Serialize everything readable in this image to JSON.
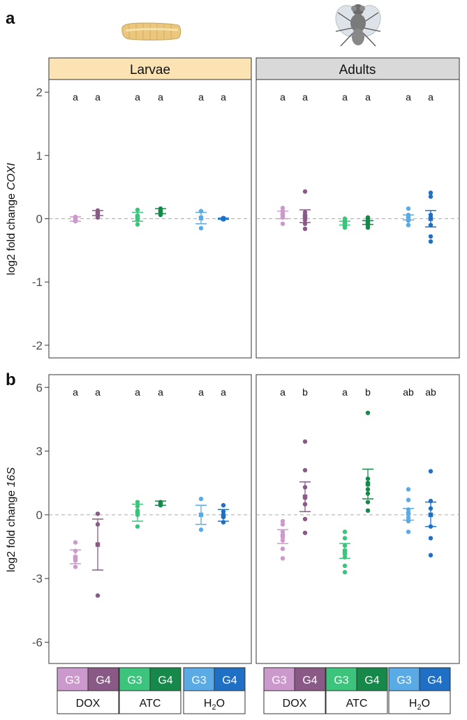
{
  "panel_labels": {
    "a": "a",
    "b": "b"
  },
  "strips": {
    "larvae": "Larvae",
    "adults": "Adults"
  },
  "treatments": [
    "DOX",
    "ATC",
    "H2O"
  ],
  "treatment_labels": {
    "DOX": "DOX",
    "ATC": "ATC",
    "H2O_main": "H",
    "H2O_sub": "2",
    "H2O_tail": "O"
  },
  "generation_labels": [
    "G3",
    "G4"
  ],
  "colors": {
    "DOX_G3": "#cc99cc",
    "DOX_G4": "#8a5a86",
    "ATC_G3": "#3cc47c",
    "ATC_G4": "#16894a",
    "H2O_G3": "#5aaae6",
    "H2O_G4": "#1f6fc4",
    "strip_larvae": "#fbe3b4",
    "strip_adults": "#d9d9d9"
  },
  "icons": {
    "larva": "larva-illustration",
    "fly": "fly-illustration"
  },
  "chart_data": [
    {
      "id": "a",
      "type": "scatter",
      "ylabel_prefix": "log2 fold change ",
      "ylabel_gene": "COXI",
      "ylim": [
        -2.2,
        2.2
      ],
      "yticks": [
        -2,
        -1,
        0,
        1,
        2
      ],
      "yticklabels": [
        "-2",
        "-1",
        "0",
        "1",
        "2"
      ],
      "reference_line": 0,
      "facets": [
        {
          "name": "Larvae",
          "groups": [
            {
              "treatment": "DOX",
              "gen": "G3",
              "letter": "a",
              "mean": -0.01,
              "lower": -0.04,
              "upper": 0.03,
              "points": [
                -0.04,
                -0.01,
                0.02,
                0.03
              ]
            },
            {
              "treatment": "DOX",
              "gen": "G4",
              "letter": "a",
              "mean": 0.09,
              "lower": 0.05,
              "upper": 0.13,
              "points": [
                0.02,
                0.06,
                0.1,
                0.13
              ]
            },
            {
              "treatment": "ATC",
              "gen": "G3",
              "letter": "a",
              "mean": 0.03,
              "lower": -0.04,
              "upper": 0.1,
              "points": [
                -0.09,
                -0.02,
                0.05,
                0.14
              ]
            },
            {
              "treatment": "ATC",
              "gen": "G4",
              "letter": "a",
              "mean": 0.12,
              "lower": 0.08,
              "upper": 0.16,
              "points": [
                0.06,
                0.1,
                0.13,
                0.16
              ]
            },
            {
              "treatment": "H2O",
              "gen": "G3",
              "letter": "a",
              "mean": 0.01,
              "lower": -0.08,
              "upper": 0.1,
              "points": [
                -0.15,
                0.02,
                0.12
              ]
            },
            {
              "treatment": "H2O",
              "gen": "G4",
              "letter": "a",
              "mean": 0.0,
              "lower": -0.01,
              "upper": 0.01,
              "points": [
                -0.01,
                0.0,
                0.01
              ]
            }
          ]
        },
        {
          "name": "Adults",
          "groups": [
            {
              "treatment": "DOX",
              "gen": "G3",
              "letter": "a",
              "mean": 0.06,
              "lower": 0.0,
              "upper": 0.12,
              "points": [
                -0.08,
                0.02,
                0.06,
                0.12,
                0.17
              ]
            },
            {
              "treatment": "DOX",
              "gen": "G4",
              "letter": "a",
              "mean": 0.04,
              "lower": -0.06,
              "upper": 0.14,
              "points": [
                -0.16,
                -0.08,
                -0.02,
                0.05,
                0.1,
                0.43
              ]
            },
            {
              "treatment": "ATC",
              "gen": "G3",
              "letter": "a",
              "mean": -0.07,
              "lower": -0.1,
              "upper": -0.04,
              "points": [
                -0.14,
                -0.11,
                -0.08,
                -0.05,
                -0.03,
                0.0
              ]
            },
            {
              "treatment": "ATC",
              "gen": "G4",
              "letter": "a",
              "mean": -0.06,
              "lower": -0.09,
              "upper": -0.03,
              "points": [
                -0.14,
                -0.1,
                -0.07,
                -0.05,
                -0.03,
                0.0,
                0.02
              ]
            },
            {
              "treatment": "H2O",
              "gen": "G3",
              "letter": "a",
              "mean": 0.02,
              "lower": -0.02,
              "upper": 0.06,
              "points": [
                -0.1,
                -0.03,
                0.01,
                0.06,
                0.16
              ]
            },
            {
              "treatment": "H2O",
              "gen": "G4",
              "letter": "a",
              "mean": 0.0,
              "lower": -0.13,
              "upper": 0.13,
              "points": [
                -0.36,
                -0.28,
                -0.1,
                0.06,
                0.35,
                0.41
              ]
            }
          ]
        }
      ]
    },
    {
      "id": "b",
      "type": "scatter",
      "ylabel_prefix": "log2 fold change ",
      "ylabel_gene": "16S",
      "ylim": [
        -7.0,
        6.6
      ],
      "yticks": [
        -6,
        -3,
        0,
        3,
        6
      ],
      "yticklabels": [
        "-6",
        "-3",
        "0",
        "3",
        "6"
      ],
      "reference_line": 0,
      "facets": [
        {
          "name": "Larvae",
          "groups": [
            {
              "treatment": "DOX",
              "gen": "G3",
              "letter": "a",
              "mean": -2.0,
              "lower": -2.3,
              "upper": -1.65,
              "points": [
                -2.45,
                -2.15,
                -2.0,
                -1.7,
                -1.3
              ]
            },
            {
              "treatment": "DOX",
              "gen": "G4",
              "letter": "a",
              "mean": -1.4,
              "lower": -2.6,
              "upper": -0.2,
              "points": [
                -3.8,
                -1.4,
                -0.45,
                0.05
              ]
            },
            {
              "treatment": "ATC",
              "gen": "G3",
              "letter": "a",
              "mean": 0.1,
              "lower": -0.3,
              "upper": 0.5,
              "points": [
                -0.55,
                0.0,
                0.2,
                0.4,
                0.6
              ]
            },
            {
              "treatment": "ATC",
              "gen": "G4",
              "letter": "a",
              "mean": 0.55,
              "lower": 0.45,
              "upper": 0.65,
              "points": [
                0.45,
                0.55,
                0.6
              ]
            },
            {
              "treatment": "H2O",
              "gen": "G3",
              "letter": "a",
              "mean": 0.0,
              "lower": -0.45,
              "upper": 0.45,
              "points": [
                -0.7,
                0.0,
                0.75
              ]
            },
            {
              "treatment": "H2O",
              "gen": "G4",
              "letter": "a",
              "mean": -0.05,
              "lower": -0.3,
              "upper": 0.25,
              "points": [
                -0.35,
                -0.1,
                0.0,
                0.15,
                0.45
              ]
            }
          ]
        },
        {
          "name": "Adults",
          "groups": [
            {
              "treatment": "DOX",
              "gen": "G3",
              "letter": "a",
              "mean": -1.0,
              "lower": -1.35,
              "upper": -0.7,
              "points": [
                -2.05,
                -1.6,
                -1.2,
                -0.95,
                -0.8,
                -0.45,
                -0.3
              ]
            },
            {
              "treatment": "DOX",
              "gen": "G4",
              "letter": "b",
              "mean": 0.85,
              "lower": 0.15,
              "upper": 1.55,
              "points": [
                -0.85,
                -0.2,
                0.5,
                0.8,
                1.3,
                2.1,
                3.45
              ]
            },
            {
              "treatment": "ATC",
              "gen": "G3",
              "letter": "a",
              "mean": -1.7,
              "lower": -2.05,
              "upper": -1.35,
              "points": [
                -2.7,
                -2.4,
                -2.0,
                -1.85,
                -1.45,
                -1.1,
                -0.8
              ]
            },
            {
              "treatment": "ATC",
              "gen": "G4",
              "letter": "b",
              "mean": 1.45,
              "lower": 0.75,
              "upper": 2.15,
              "points": [
                0.2,
                0.6,
                1.0,
                1.2,
                1.5,
                1.7,
                4.8
              ]
            },
            {
              "treatment": "H2O",
              "gen": "G3",
              "letter": "ab",
              "mean": 0.05,
              "lower": -0.25,
              "upper": 0.3,
              "points": [
                -0.8,
                -0.3,
                -0.15,
                0.1,
                0.25,
                0.7,
                1.2
              ]
            },
            {
              "treatment": "H2O",
              "gen": "G4",
              "letter": "ab",
              "mean": 0.0,
              "lower": -0.55,
              "upper": 0.6,
              "points": [
                -1.9,
                -1.1,
                -0.55,
                0.0,
                0.3,
                0.65,
                2.05
              ]
            }
          ]
        }
      ]
    }
  ]
}
